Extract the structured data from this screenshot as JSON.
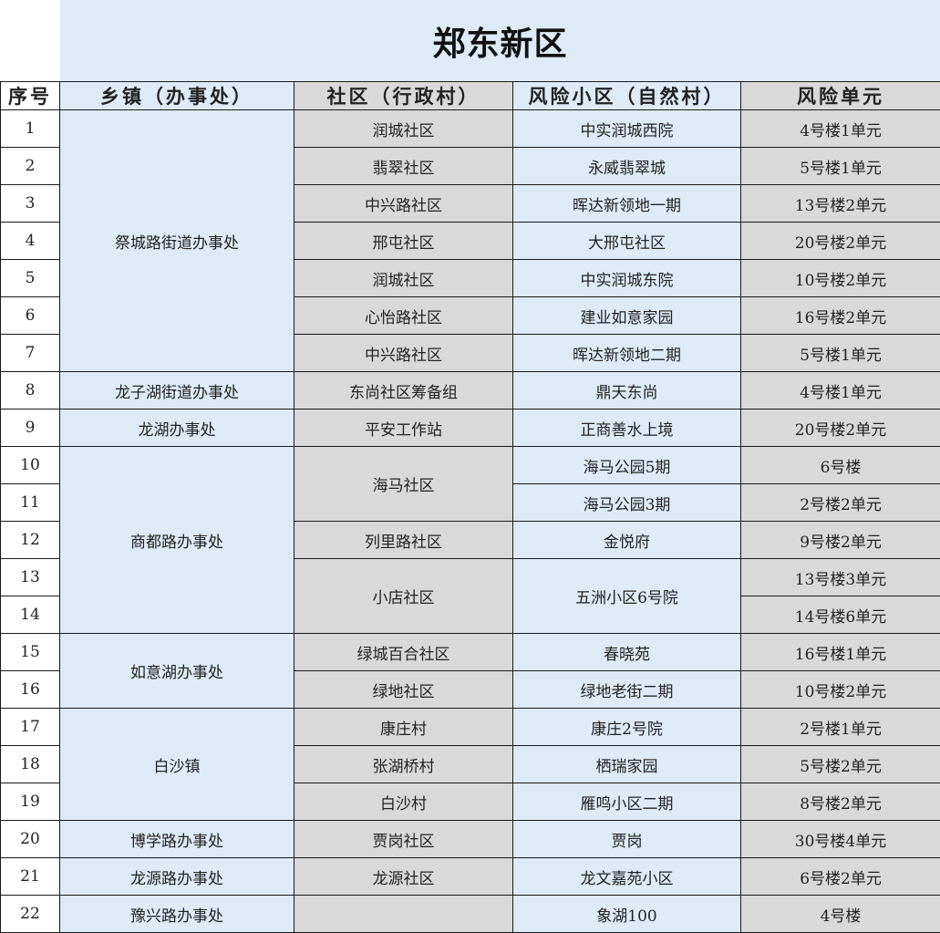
{
  "title": "郑东新区",
  "headers": [
    "序号",
    "乡镇（办事处）",
    "社区（行政村）",
    "风险小区（自然村）",
    "风险单元"
  ],
  "colors": {
    "blue_fill": "#deeaf6",
    "gray_fill": "#d9d9d9",
    "border": "#1a1a1a"
  },
  "rows": [
    {
      "seq": "1",
      "town": "祭城路街道办事处",
      "community": "润城社区",
      "area": "中实润城西院",
      "unit": "4号楼1单元"
    },
    {
      "seq": "2",
      "town": null,
      "community": "翡翠社区",
      "area": "永威翡翠城",
      "unit": "5号楼1单元"
    },
    {
      "seq": "3",
      "town": null,
      "community": "中兴路社区",
      "area": "晖达新领地一期",
      "unit": "13号楼2单元"
    },
    {
      "seq": "4",
      "town": null,
      "community": "邢屯社区",
      "area": "大邢屯社区",
      "unit": "20号楼2单元"
    },
    {
      "seq": "5",
      "town": null,
      "community": "润城社区",
      "area": "中实润城东院",
      "unit": "10号楼2单元"
    },
    {
      "seq": "6",
      "town": null,
      "community": "心怡路社区",
      "area": "建业如意家园",
      "unit": "16号楼2单元"
    },
    {
      "seq": "7",
      "town": null,
      "community": "中兴路社区",
      "area": "晖达新领地二期",
      "unit": "5号楼1单元"
    },
    {
      "seq": "8",
      "town": "龙子湖街道办事处",
      "community": "东尚社区筹备组",
      "area": "鼎天东尚",
      "unit": "4号楼1单元"
    },
    {
      "seq": "9",
      "town": "龙湖办事处",
      "community": "平安工作站",
      "area": "正商善水上境",
      "unit": "20号楼2单元"
    },
    {
      "seq": "10",
      "town": "商都路办事处",
      "community": "海马社区",
      "area": "海马公园5期",
      "unit": "6号楼"
    },
    {
      "seq": "11",
      "town": null,
      "community": null,
      "area": "海马公园3期",
      "unit": "2号楼2单元"
    },
    {
      "seq": "12",
      "town": null,
      "community": "列里路社区",
      "area": "金悦府",
      "unit": "9号楼2单元"
    },
    {
      "seq": "13",
      "town": null,
      "community": "小店社区",
      "area": "五洲小区6号院",
      "unit": "13号楼3单元"
    },
    {
      "seq": "14",
      "town": null,
      "community": null,
      "area": null,
      "unit": "14号楼6单元"
    },
    {
      "seq": "15",
      "town": "如意湖办事处",
      "community": "绿城百合社区",
      "area": "春晓苑",
      "unit": "16号楼1单元"
    },
    {
      "seq": "16",
      "town": null,
      "community": "绿地社区",
      "area": "绿地老街二期",
      "unit": "10号楼2单元"
    },
    {
      "seq": "17",
      "town": "白沙镇",
      "community": "康庄村",
      "area": "康庄2号院",
      "unit": "2号楼1单元"
    },
    {
      "seq": "18",
      "town": null,
      "community": "张湖桥村",
      "area": "栖瑞家园",
      "unit": "5号楼2单元"
    },
    {
      "seq": "19",
      "town": null,
      "community": "白沙村",
      "area": "雁鸣小区二期",
      "unit": "8号楼2单元"
    },
    {
      "seq": "20",
      "town": "博学路办事处",
      "community": "贾岗社区",
      "area": "贾岗",
      "unit": "30号楼4单元"
    },
    {
      "seq": "21",
      "town": "龙源路办事处",
      "community": "龙源社区",
      "area": "龙文嘉苑小区",
      "unit": "6号楼2单元"
    },
    {
      "seq": "22",
      "town": "豫兴路办事处",
      "community": "",
      "area": "象湖100",
      "unit": "4号楼"
    }
  ]
}
